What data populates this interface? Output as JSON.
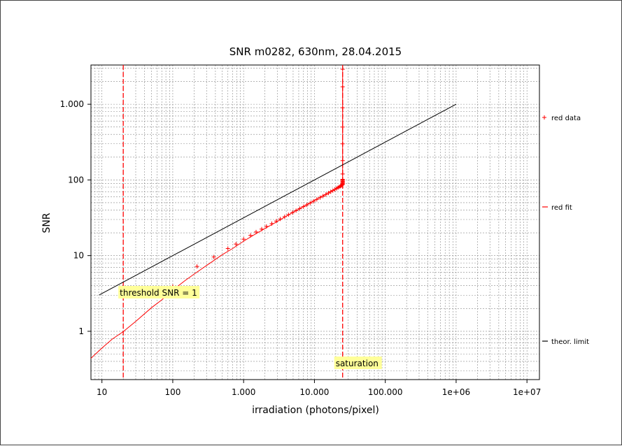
{
  "chart_data": {
    "type": "line",
    "title": "SNR m0282, 630nm, 28.04.2015",
    "xlabel": "irradiation (photons/pixel)",
    "ylabel": "SNR",
    "x_scale": "log",
    "y_scale": "log",
    "xlim": [
      7,
      15000000
    ],
    "ylim": [
      0.23,
      3300
    ],
    "grid": true,
    "legend_position": "right",
    "x_ticks": [
      {
        "value": 10,
        "label": "10"
      },
      {
        "value": 100,
        "label": "100"
      },
      {
        "value": 1000,
        "label": "1.000"
      },
      {
        "value": 10000,
        "label": "10.000"
      },
      {
        "value": 100000,
        "label": "100.000"
      },
      {
        "value": 1000000,
        "label": "1e+06"
      },
      {
        "value": 10000000,
        "label": "1e+07"
      }
    ],
    "y_ticks": [
      {
        "value": 1,
        "label": "1"
      },
      {
        "value": 10,
        "label": "10"
      },
      {
        "value": 100,
        "label": "100"
      },
      {
        "value": 1000,
        "label": "1.000"
      }
    ],
    "series": [
      {
        "name": "red data",
        "style": "markers",
        "color": "#ff0000",
        "x": [
          100,
          220,
          380,
          600,
          780,
          1000,
          1250,
          1500,
          1800,
          2100,
          2500,
          2900,
          3300,
          3800,
          4300,
          4900,
          5500,
          6200,
          7000,
          7800,
          8700,
          9700,
          10800,
          12000,
          13200,
          14500,
          15800,
          17000,
          18200,
          19400,
          20500,
          21500,
          22400,
          23200,
          23900,
          24500,
          25000,
          25000,
          25000,
          25000,
          25000,
          25000,
          25000,
          25000,
          25000,
          25000,
          25000,
          25000,
          25000,
          25000,
          25000
        ],
        "y": [
          3.9,
          7.2,
          9.6,
          12.4,
          14.2,
          16.5,
          18.5,
          20.5,
          22.4,
          24.3,
          26.5,
          28.6,
          30.5,
          32.7,
          34.7,
          37.0,
          39.3,
          41.8,
          44.3,
          46.8,
          49.5,
          52.3,
          55.3,
          58.3,
          61.2,
          64.2,
          67.1,
          69.8,
          72.3,
          74.8,
          77.1,
          79.2,
          81.0,
          82.7,
          84.0,
          85.4,
          87.0,
          89.0,
          91.0,
          93.0,
          95.0,
          97.0,
          99.5,
          102,
          120,
          180,
          300,
          500,
          900,
          1700,
          2900
        ]
      },
      {
        "name": "red fit",
        "style": "line",
        "color": "#ff0000",
        "x": [
          7,
          10,
          14,
          20,
          30,
          50,
          70,
          100,
          150,
          200,
          300,
          500,
          700,
          1000,
          1500,
          2000,
          3000,
          5000,
          7000,
          10000,
          15000,
          20000,
          24900,
          25000,
          25000
        ],
        "y": [
          0.44,
          0.6,
          0.79,
          0.99,
          1.35,
          2.05,
          2.6,
          3.5,
          4.7,
          5.7,
          7.4,
          10.3,
          12.4,
          15.5,
          19.5,
          22.8,
          28.3,
          37.5,
          44.5,
          53.5,
          66,
          76.5,
          85.5,
          100,
          2700
        ]
      },
      {
        "name": "theor. limit",
        "style": "line",
        "color": "#000000",
        "x": [
          9.2,
          1000000
        ],
        "y": [
          3.03,
          1000
        ]
      }
    ],
    "annotations": [
      {
        "text": "threshold SNR = 1",
        "x": 20,
        "y": 1
      },
      {
        "text": "saturation",
        "x": 25000,
        "y": 1
      }
    ],
    "threshold_x": 20,
    "saturation_x": 25000,
    "colors": {
      "red": "#ff0000",
      "black": "#000000",
      "label_bg": "#ffff99"
    }
  }
}
